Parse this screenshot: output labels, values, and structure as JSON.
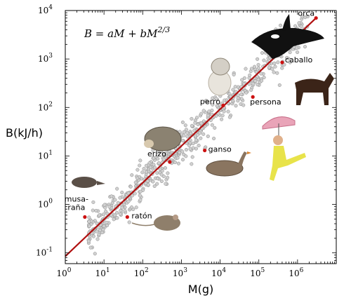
{
  "chart_data": {
    "type": "scatter",
    "xlabel": "M(g)",
    "ylabel": "B(kJ/h)",
    "x_scale": "log",
    "y_scale": "log",
    "xlim": [
      1,
      10000000
    ],
    "ylim": [
      0.06,
      10000
    ],
    "grid": false,
    "formula": {
      "lhs": "B = aM + bM",
      "exponent": "2/3"
    },
    "x_ticks": [
      {
        "value": 1,
        "base": "10",
        "exp": "0"
      },
      {
        "value": 10,
        "base": "10",
        "exp": "1"
      },
      {
        "value": 100,
        "base": "10",
        "exp": "2"
      },
      {
        "value": 1000,
        "base": "10",
        "exp": "3"
      },
      {
        "value": 10000,
        "base": "10",
        "exp": "4"
      },
      {
        "value": 100000,
        "base": "10",
        "exp": "5"
      },
      {
        "value": 1000000,
        "base": "10",
        "exp": "6"
      }
    ],
    "y_ticks": [
      {
        "value": 0.1,
        "base": "10",
        "exp": "-1"
      },
      {
        "value": 1,
        "base": "10",
        "exp": "0"
      },
      {
        "value": 10,
        "base": "10",
        "exp": "1"
      },
      {
        "value": 100,
        "base": "10",
        "exp": "2"
      },
      {
        "value": 1000,
        "base": "10",
        "exp": "3"
      },
      {
        "value": 10000,
        "base": "10",
        "exp": "4"
      }
    ],
    "fit_line": {
      "color": "#b01010",
      "points": [
        [
          1,
          0.085
        ],
        [
          3000000,
          7000
        ]
      ]
    },
    "highlighted": [
      {
        "label": "musa-\nraña",
        "x": 3.2,
        "y": 0.55
      },
      {
        "label": "ratón",
        "x": 40,
        "y": 0.55
      },
      {
        "label": "erizo",
        "x": 500,
        "y": 7.5
      },
      {
        "label": "ganso",
        "x": 4000,
        "y": 13
      },
      {
        "label": "perro",
        "x": 12000,
        "y": 110
      },
      {
        "label": "persona",
        "x": 70000,
        "y": 165
      },
      {
        "label": "caballo",
        "x": 400000,
        "y": 850
      },
      {
        "label": "orca",
        "x": 3000000,
        "y": 7000
      }
    ],
    "scatter_cloud": {
      "description_points": "many grey points following the fit",
      "color": "#c8c8c8",
      "count": 650,
      "log_x_range": [
        0.6,
        6.3
      ]
    },
    "colors": {
      "highlight": "#cc1111",
      "cloud_fill": "#d0d0d0",
      "cloud_stroke": "#8a8a8a"
    }
  }
}
